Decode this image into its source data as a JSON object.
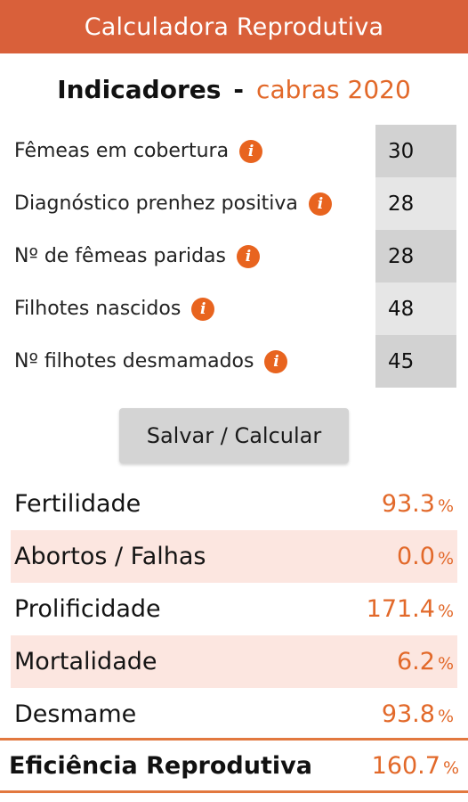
{
  "app": {
    "title": "Calculadora Reprodutiva"
  },
  "heading": {
    "label": "Indicadores",
    "separator": "-",
    "subject": "cabras 2020"
  },
  "icons": {
    "info": "info-icon"
  },
  "colors": {
    "appbar": "#d9603a",
    "accent": "#e2692a",
    "alt_row": "#fce6e0"
  },
  "inputs": [
    {
      "label": "Fêmeas em cobertura",
      "value": "30"
    },
    {
      "label": "Diagnóstico prenhez positiva",
      "value": "28"
    },
    {
      "label": "Nº de fêmeas paridas",
      "value": "28"
    },
    {
      "label": "Filhotes nascidos",
      "value": "48"
    },
    {
      "label": "Nº filhotes desmamados",
      "value": "45"
    }
  ],
  "button": {
    "label": "Salvar / Calcular"
  },
  "results": [
    {
      "label": "Fertilidade",
      "value": "93.3",
      "unit": "%"
    },
    {
      "label": "Abortos / Falhas",
      "value": "0.0",
      "unit": "%"
    },
    {
      "label": "Prolificidade",
      "value": "171.4",
      "unit": "%"
    },
    {
      "label": "Mortalidade",
      "value": "6.2",
      "unit": "%"
    },
    {
      "label": "Desmame",
      "value": "93.8",
      "unit": "%"
    }
  ],
  "efficiency": {
    "label": "Eficiência Reprodutiva",
    "value": "160.7",
    "unit": "%"
  }
}
